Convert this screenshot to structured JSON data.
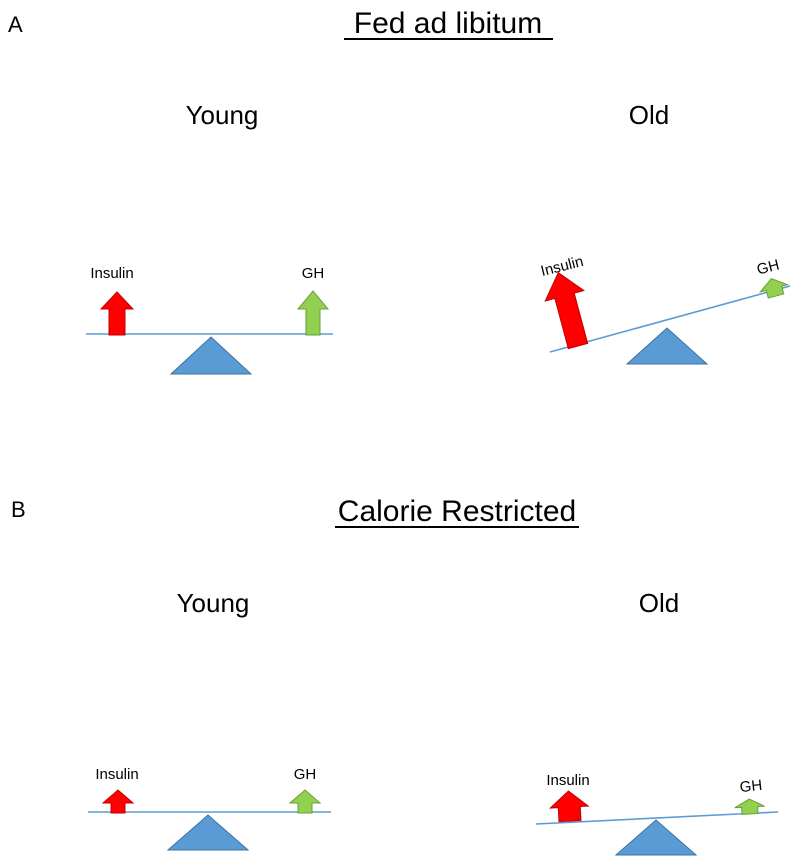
{
  "colors": {
    "insulin_arrow": "#ff0000",
    "gh_arrow": "#92d050",
    "fulcrum": "#5b9bd5",
    "beam": "#5b9bd5",
    "outline": "#41719c"
  },
  "panel_a": {
    "letter": "A",
    "title": "Fed ad libitum",
    "young": {
      "heading": "Young",
      "insulin_label": "Insulin",
      "gh_label": "GH"
    },
    "old": {
      "heading": "Old",
      "insulin_label": "Insulin",
      "gh_label": "GH"
    }
  },
  "panel_b": {
    "letter": "B",
    "title": "Calorie Restricted",
    "young": {
      "heading": "Young",
      "insulin_label": "Insulin",
      "gh_label": "GH"
    },
    "old": {
      "heading": "Old",
      "insulin_label": "Insulin",
      "gh_label": "GH"
    }
  }
}
